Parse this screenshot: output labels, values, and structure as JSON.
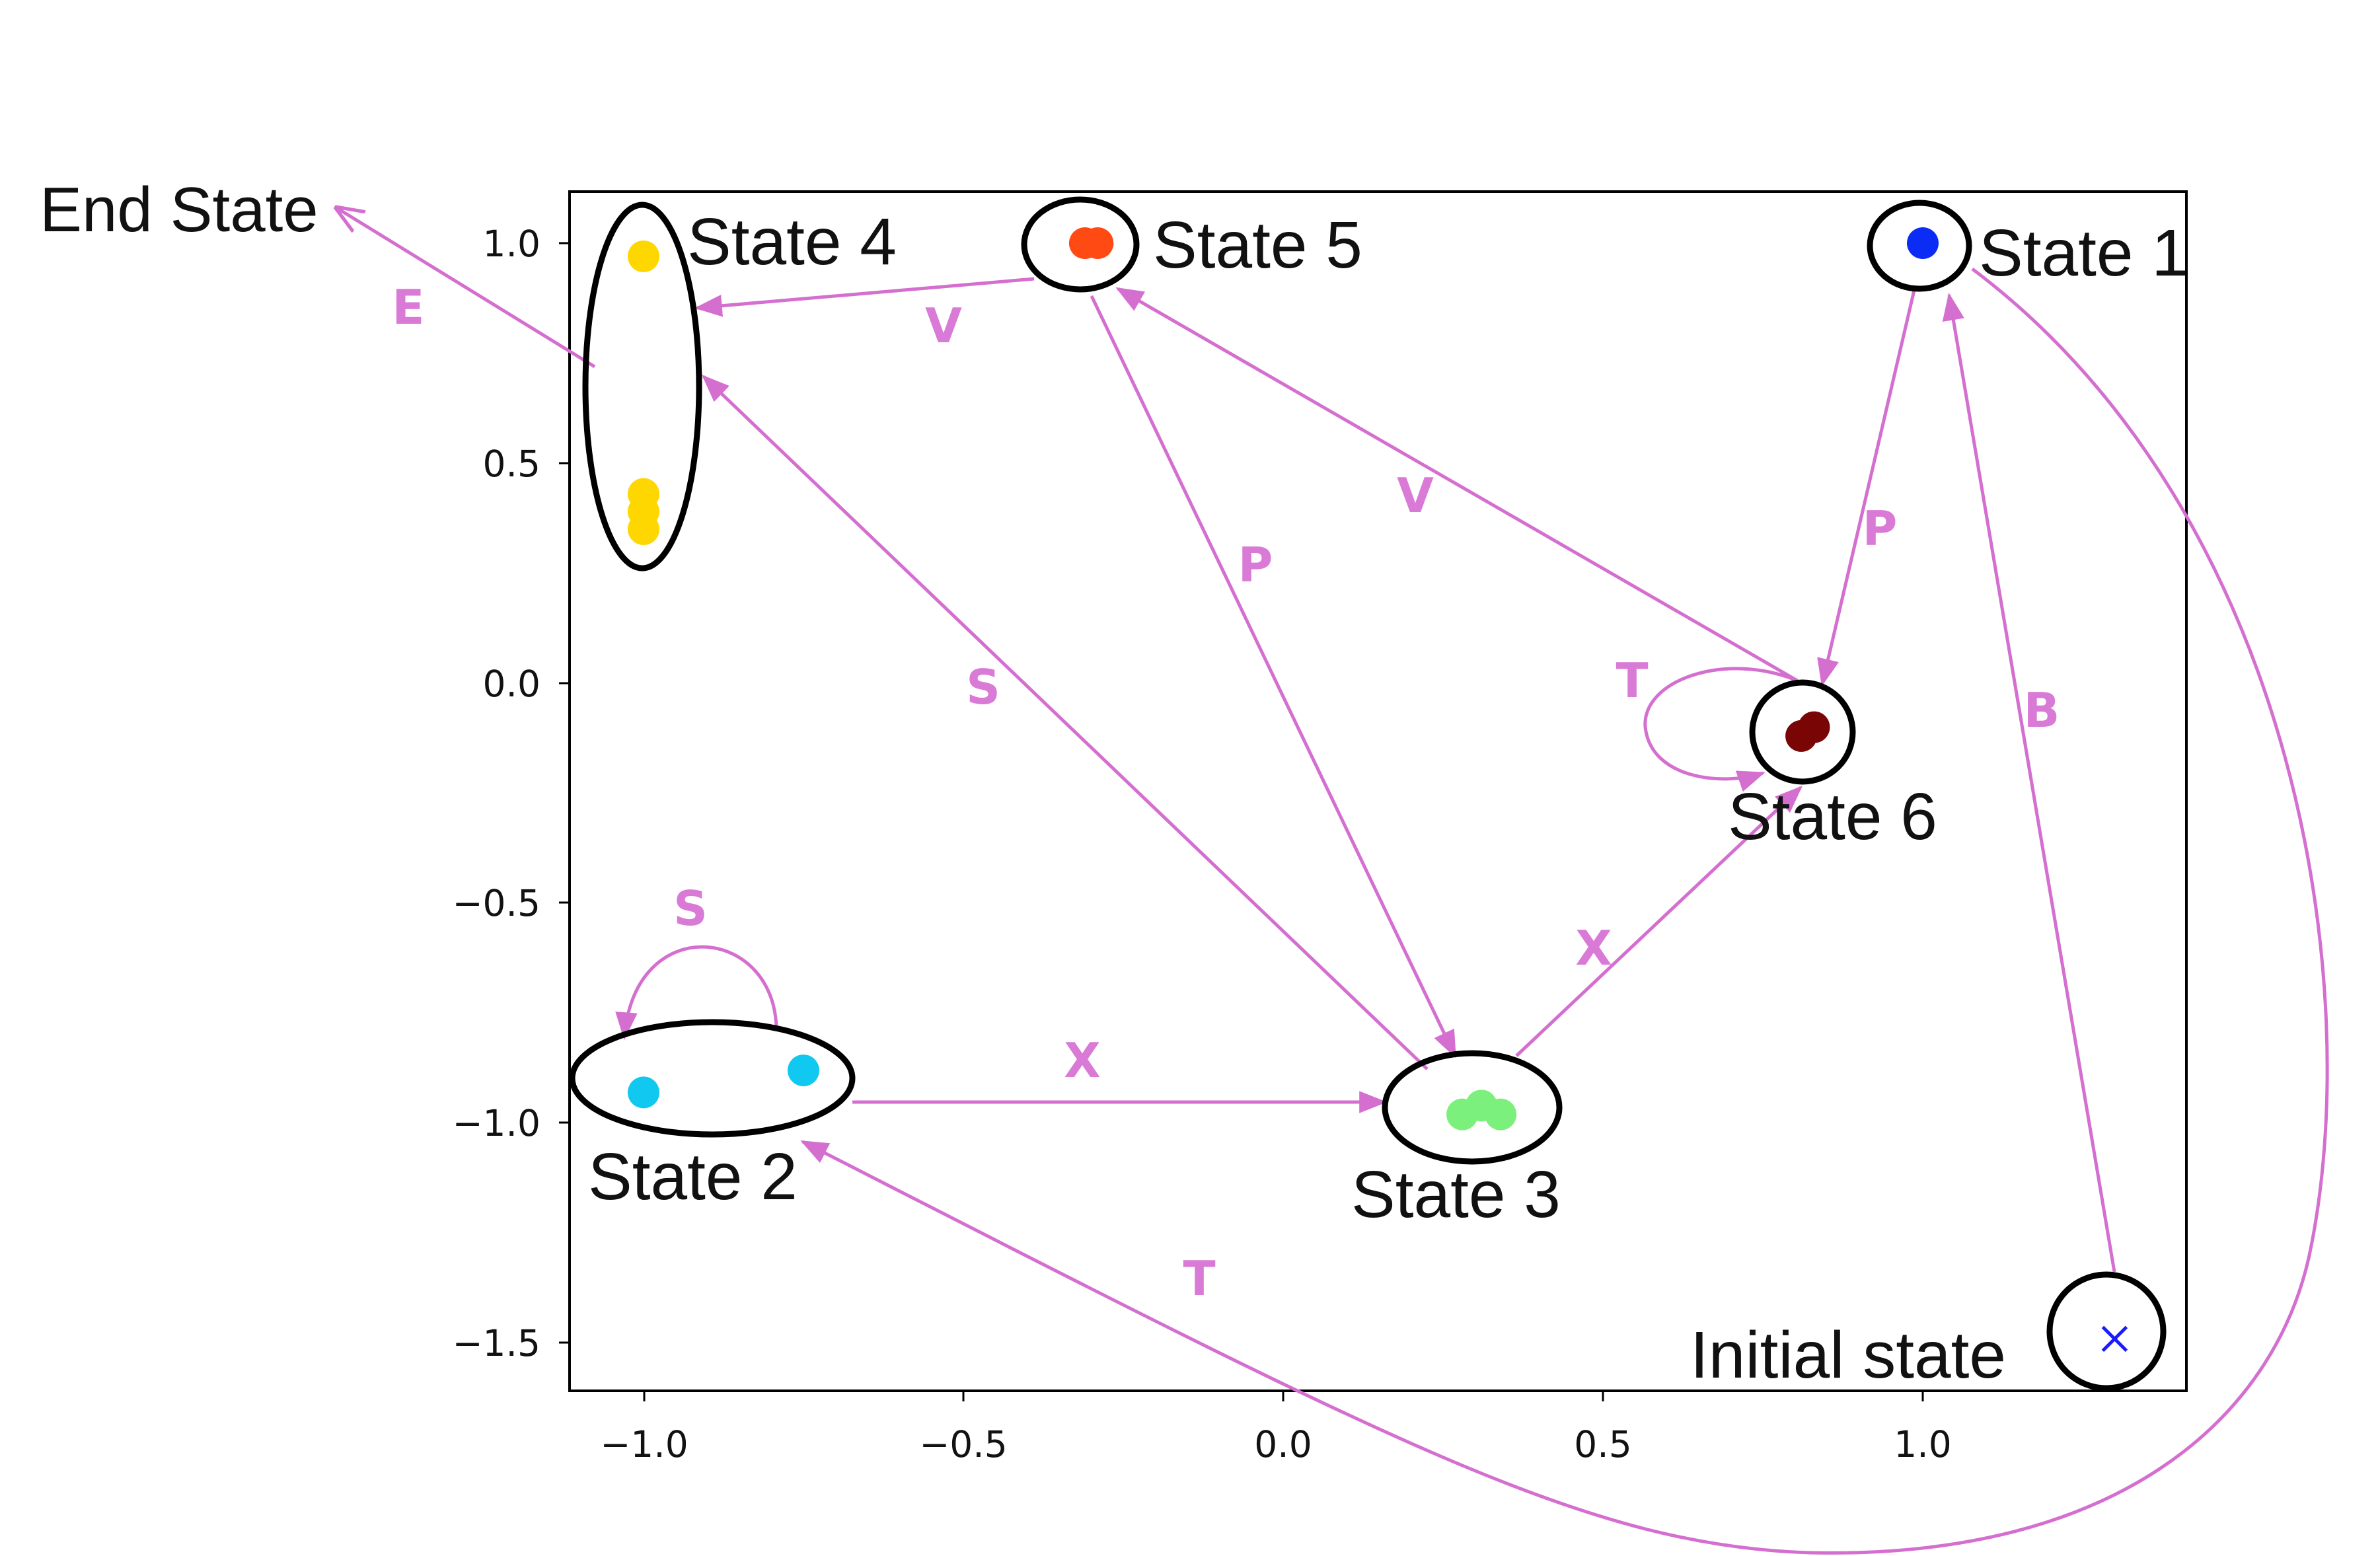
{
  "axes": {
    "x_ticks": [
      "−1.0",
      "−0.5",
      "0.0",
      "0.5",
      "1.0"
    ],
    "y_ticks": [
      "1.0",
      "0.5",
      "0.0",
      "−0.5",
      "−1.0",
      "−1.5"
    ]
  },
  "states": {
    "state1": "State 1",
    "state2": "State 2",
    "state3": "State 3",
    "state4": "State 4",
    "state5": "State 5",
    "state6": "State 6",
    "initial": "Initial state",
    "end": "End State"
  },
  "points": [
    {
      "group": "state1",
      "x": 1.0,
      "y": 1.0,
      "color": "#0b2cf5"
    },
    {
      "group": "state2",
      "x": -1.0,
      "y": -0.93,
      "color": "#10c8f0"
    },
    {
      "group": "state2",
      "x": -0.75,
      "y": -0.88,
      "color": "#10c8f0"
    },
    {
      "group": "state3",
      "x": 0.28,
      "y": -0.98,
      "color": "#7cf07c"
    },
    {
      "group": "state3",
      "x": 0.31,
      "y": -0.96,
      "color": "#7cf07c"
    },
    {
      "group": "state3",
      "x": 0.34,
      "y": -0.98,
      "color": "#7cf07c"
    },
    {
      "group": "state4",
      "x": -1.0,
      "y": 0.97,
      "color": "#ffd700"
    },
    {
      "group": "state4",
      "x": -1.0,
      "y": 0.43,
      "color": "#ffd700"
    },
    {
      "group": "state4",
      "x": -1.0,
      "y": 0.39,
      "color": "#ffd700"
    },
    {
      "group": "state4",
      "x": -1.0,
      "y": 0.35,
      "color": "#ffd700"
    },
    {
      "group": "state5",
      "x": -0.31,
      "y": 1.0,
      "color": "#ff4a14"
    },
    {
      "group": "state5",
      "x": -0.29,
      "y": 1.0,
      "color": "#ff4a14"
    },
    {
      "group": "state6",
      "x": 0.81,
      "y": -0.12,
      "color": "#7a0505"
    },
    {
      "group": "state6",
      "x": 0.83,
      "y": -0.1,
      "color": "#7a0505"
    }
  ],
  "initial_marker": {
    "x": 1.3,
    "y": -1.49,
    "color": "#1a1aff"
  },
  "transitions": {
    "e": "E",
    "v_5_to_4": "V",
    "v_6_to_5": "V",
    "p_5_to_3": "P",
    "p_1_to_6": "P",
    "s_3_to_4": "S",
    "s_loop_2": "S",
    "t_loop_6": "T",
    "t_1_to_2": "T",
    "b_init_to_1": "B",
    "x_2_to_3": "X",
    "x_3_to_6": "X"
  },
  "colors": {
    "arrow": "#d46fd0",
    "ring": "#000000"
  }
}
